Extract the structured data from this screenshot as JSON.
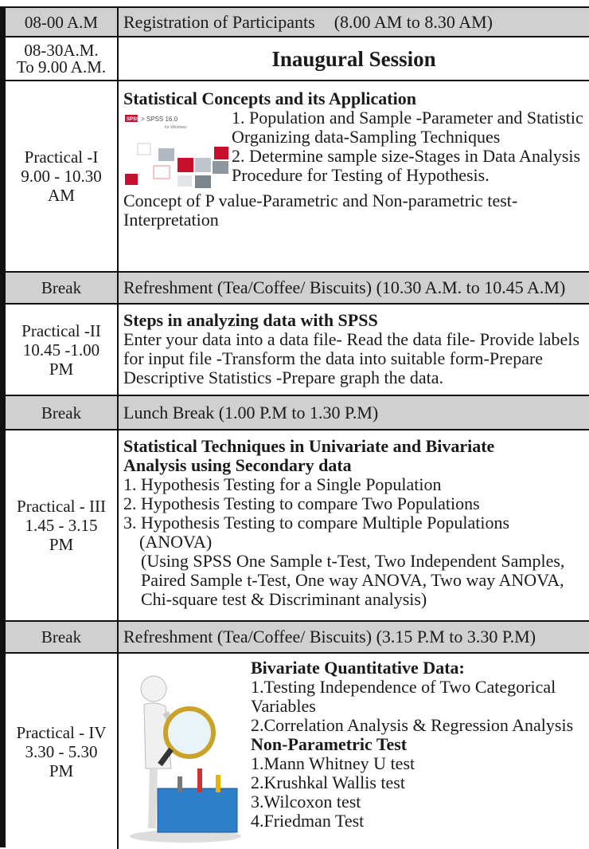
{
  "rows": [
    {
      "time": [
        "08-00 A.M"
      ],
      "activity": "Registration of Participants",
      "note": "(8.00 AM to 8.30 AM)"
    },
    {
      "time": [
        "08-30A.M.",
        "To 9.00 A.M."
      ],
      "activity": "Inaugural Session"
    },
    {
      "time": [
        "Practical -I",
        "9.00 - 10.30",
        "AM"
      ],
      "heading": "Statistical Concepts and its Application",
      "items": [
        "1. Population and Sample -Parameter and Statistic Organizing data-Sampling Techniques",
        "2. Determine sample size-Stages in Data Analysis Procedure for Testing of Hypothesis."
      ],
      "text": "Concept of P value-Parametric and Non-parametric test-Interpretation",
      "image": {
        "logo": "SPSS",
        "title": "> SPSS 16.0",
        "subtitle": "for Windows"
      }
    },
    {
      "time": [
        "Break"
      ],
      "activity": "Refreshment (Tea/Coffee/ Biscuits) (10.30 A.M. to 10.45 A.M)"
    },
    {
      "time": [
        "Practical -II",
        "10.45 -1.00",
        "PM"
      ],
      "heading": "Steps in analyzing data with SPSS",
      "text": "Enter your data into a data file-  Read the data file- Provide labels for input file -Transform the data into suitable form-Prepare Descriptive Statistics -Prepare graph the data."
    },
    {
      "time": [
        "Break"
      ],
      "activity": "Lunch Break (1.00 P.M to 1.30 P.M)"
    },
    {
      "time": [
        "Practical - III",
        "1.45 - 3.15",
        "PM"
      ],
      "heading": "Statistical Techniques in Univariate and Bivariate Analysis using Secondary data",
      "items": [
        "1. Hypothesis Testing for a Single Population",
        "2. Hypothesis Testing to compare Two Populations",
        "3. Hypothesis Testing to compare Multiple Populations (ANOVA)"
      ],
      "note": "(Using SPSS  One Sample t-Test, Two  Independent Samples, Paired Sample t-Test, One way ANOVA, Two way ANOVA, Chi-square test & Discriminant analysis)"
    },
    {
      "time": [
        "Break"
      ],
      "activity": "Refreshment (Tea/Coffee/ Biscuits) (3.15 P.M  to 3.30 P.M)"
    },
    {
      "time": [
        "Practical - IV",
        "3.30 - 5.30",
        "PM"
      ],
      "sections": [
        {
          "heading": "Bivariate Quantitative Data:",
          "items": [
            "1.Testing Independence of Two Categorical Variables",
            "2.Correlation Analysis & Regression Analysis"
          ]
        },
        {
          "heading": "Non-Parametric Test",
          "items": [
            "1.Mann Whitney U test",
            "2.Krushkal Wallis test",
            "3.Wilcoxon test",
            "4.Friedman Test"
          ]
        }
      ]
    }
  ]
}
